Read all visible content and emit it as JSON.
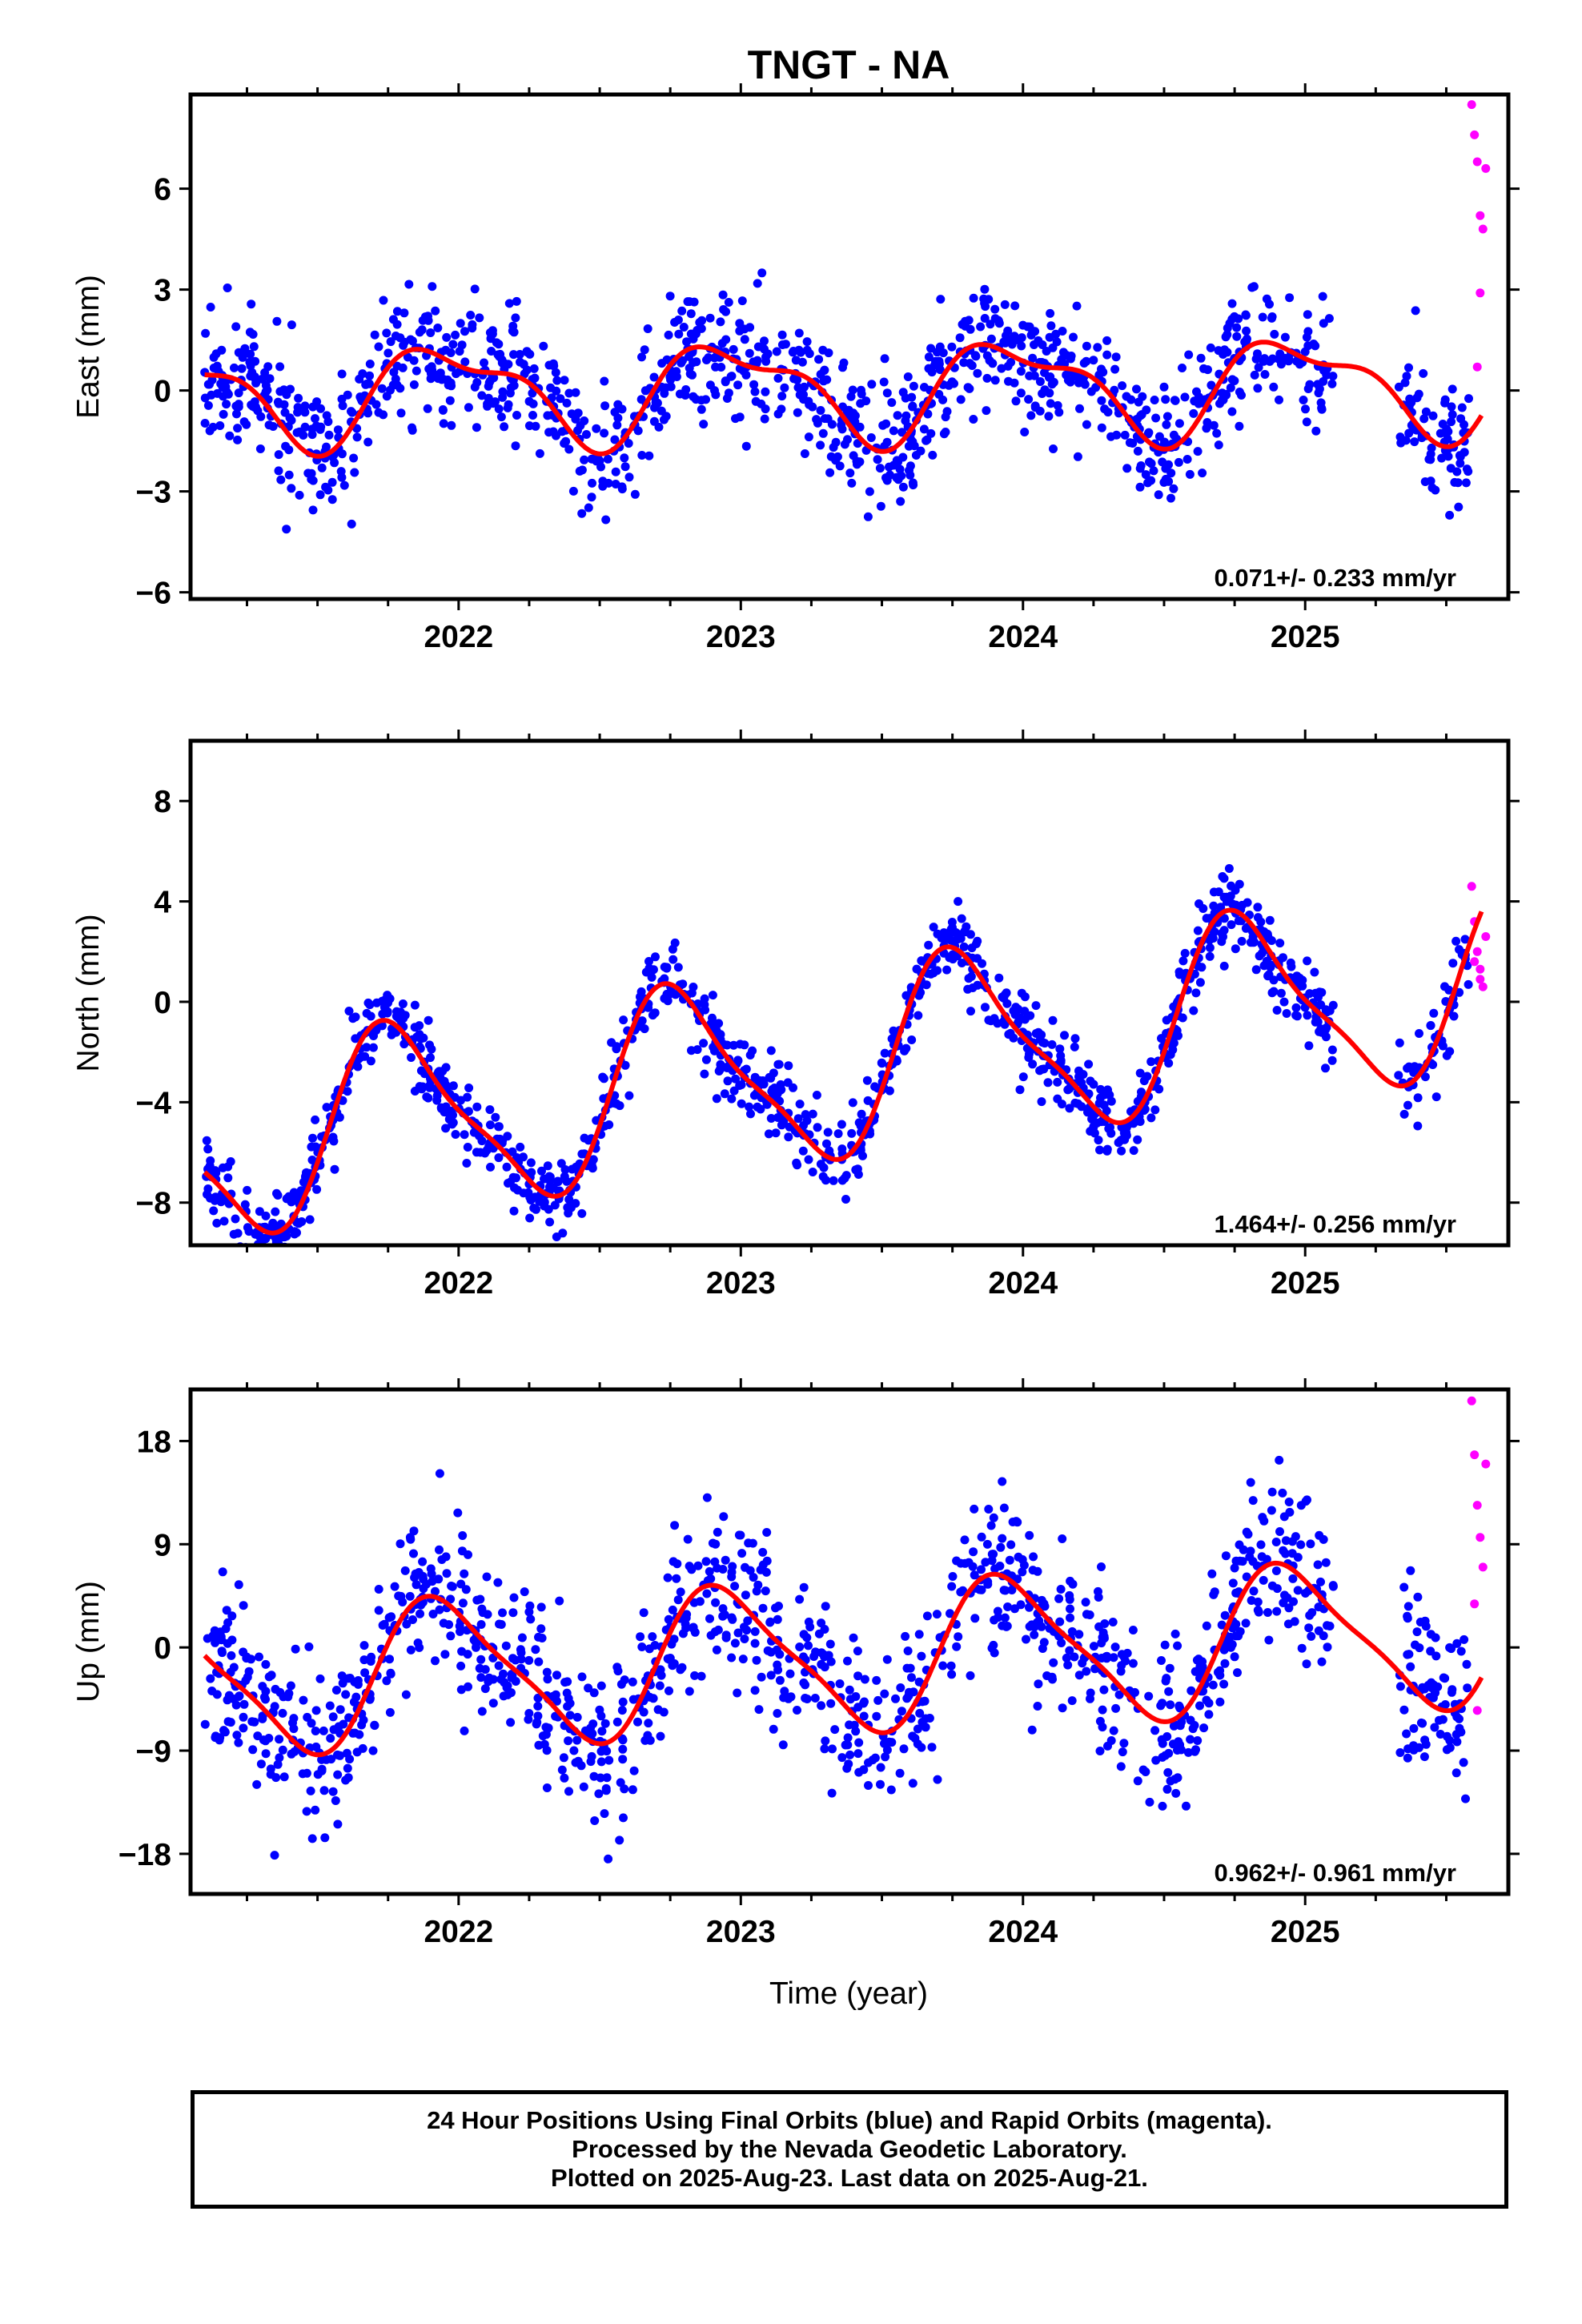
{
  "title": "TNGT - NA",
  "x_axis_label": "Time (year)",
  "footer": {
    "line1": "24 Hour Positions Using Final Orbits (blue) and Rapid Orbits (magenta).",
    "line2": "Processed by the Nevada Geodetic Laboratory.",
    "line3": "Plotted on 2025-Aug-23. Last data on 2025-Aug-21."
  },
  "colors": {
    "final_orbits": "#0000ff",
    "rapid_orbits": "#ff00ff",
    "model_fit": "#ff0000",
    "frame": "#000000"
  },
  "chart_data": [
    {
      "type": "scatter",
      "id": "east",
      "ylabel": "East (mm)",
      "xlabel": "",
      "xlim": [
        2021.05,
        2025.72
      ],
      "ylim": [
        -6.2,
        8.8
      ],
      "x_ticks": [
        2022,
        2023,
        2024,
        2025
      ],
      "x_tick_labels": [
        "2022",
        "2023",
        "2024",
        "2025"
      ],
      "y_ticks": [
        -6,
        -3,
        0,
        3,
        6
      ],
      "y_tick_labels": [
        "-6",
        "-3",
        "0",
        "3",
        "6"
      ],
      "rate_annotation": "0.071+/- 0.233 mm/yr",
      "series": [
        {
          "role": "final",
          "x_start": 2021.1,
          "x_end": 2025.1,
          "gap": [
            2025.1,
            2025.33
          ],
          "x_resume_end": 2025.58,
          "n": 1300,
          "seed": 11,
          "noise": 0.95
        },
        {
          "role": "rapid",
          "values_sample": [
            [
              2025.59,
              8.5
            ],
            [
              2025.6,
              7.6
            ],
            [
              2025.61,
              6.8
            ],
            [
              2025.62,
              5.2
            ],
            [
              2025.63,
              4.8
            ],
            [
              2025.64,
              6.6
            ],
            [
              2025.62,
              2.9
            ],
            [
              2025.61,
              0.7
            ]
          ]
        },
        {
          "role": "model",
          "offset": 0.0,
          "trend": 0.071,
          "annual_amp": 1.35,
          "annual_phase": 0.72,
          "semi_amp": 0.55,
          "semi_phase": 0.15,
          "x_start": 2021.1,
          "x_end": 2025.63
        }
      ]
    },
    {
      "type": "scatter",
      "id": "north",
      "ylabel": "North (mm)",
      "xlabel": "",
      "xlim": [
        2021.05,
        2025.72
      ],
      "ylim": [
        -9.7,
        10.4
      ],
      "x_ticks": [
        2022,
        2023,
        2024,
        2025
      ],
      "x_tick_labels": [
        "2022",
        "2023",
        "2024",
        "2025"
      ],
      "y_ticks": [
        -8,
        -4,
        0,
        4,
        8
      ],
      "y_tick_labels": [
        "-8",
        "-4",
        "0",
        "4",
        "8"
      ],
      "rate_annotation": "1.464+/- 0.256 mm/yr",
      "series": [
        {
          "role": "final",
          "x_start": 2021.1,
          "x_end": 2025.1,
          "gap": [
            2025.1,
            2025.33
          ],
          "x_resume_end": 2025.58,
          "n": 1300,
          "seed": 23,
          "noise": 0.75
        },
        {
          "role": "rapid",
          "values_sample": [
            [
              2025.59,
              4.6
            ],
            [
              2025.6,
              3.2
            ],
            [
              2025.61,
              2.0
            ],
            [
              2025.62,
              1.3
            ],
            [
              2025.63,
              0.6
            ],
            [
              2025.6,
              1.6
            ],
            [
              2025.62,
              0.9
            ],
            [
              2025.64,
              2.6
            ]
          ]
        },
        {
          "role": "model",
          "offset": -3.0,
          "trend": 1.464,
          "annual_amp": 3.6,
          "annual_phase": 0.53,
          "semi_amp": 0.9,
          "semi_phase": 0.05,
          "x_start": 2021.1,
          "x_end": 2025.63
        }
      ]
    },
    {
      "type": "scatter",
      "id": "up",
      "ylabel": "Up (mm)",
      "xlabel": "Time (year)",
      "xlim": [
        2021.05,
        2025.72
      ],
      "ylim": [
        -21.5,
        22.5
      ],
      "x_ticks": [
        2022,
        2023,
        2024,
        2025
      ],
      "x_tick_labels": [
        "2022",
        "2023",
        "2024",
        "2025"
      ],
      "y_ticks": [
        -18,
        -9,
        0,
        9,
        18
      ],
      "y_tick_labels": [
        "-18",
        "-9",
        "0",
        "9",
        "18"
      ],
      "rate_annotation": "0.962+/- 0.961 mm/yr",
      "series": [
        {
          "role": "final",
          "x_start": 2021.1,
          "x_end": 2025.1,
          "gap": [
            2025.1,
            2025.33
          ],
          "x_resume_end": 2025.58,
          "n": 1300,
          "seed": 37,
          "noise": 3.6
        },
        {
          "role": "rapid",
          "values_sample": [
            [
              2025.59,
              21.5
            ],
            [
              2025.6,
              16.8
            ],
            [
              2025.61,
              12.4
            ],
            [
              2025.62,
              9.6
            ],
            [
              2025.63,
              7.0
            ],
            [
              2025.6,
              3.8
            ],
            [
              2025.61,
              -5.5
            ],
            [
              2025.64,
              16.0
            ]
          ]
        },
        {
          "role": "model",
          "offset": -1.2,
          "trend": 0.962,
          "annual_amp": 6.2,
          "annual_phase": 0.7,
          "semi_amp": 1.4,
          "semi_phase": 0.2,
          "x_start": 2021.1,
          "x_end": 2025.63
        }
      ]
    }
  ]
}
